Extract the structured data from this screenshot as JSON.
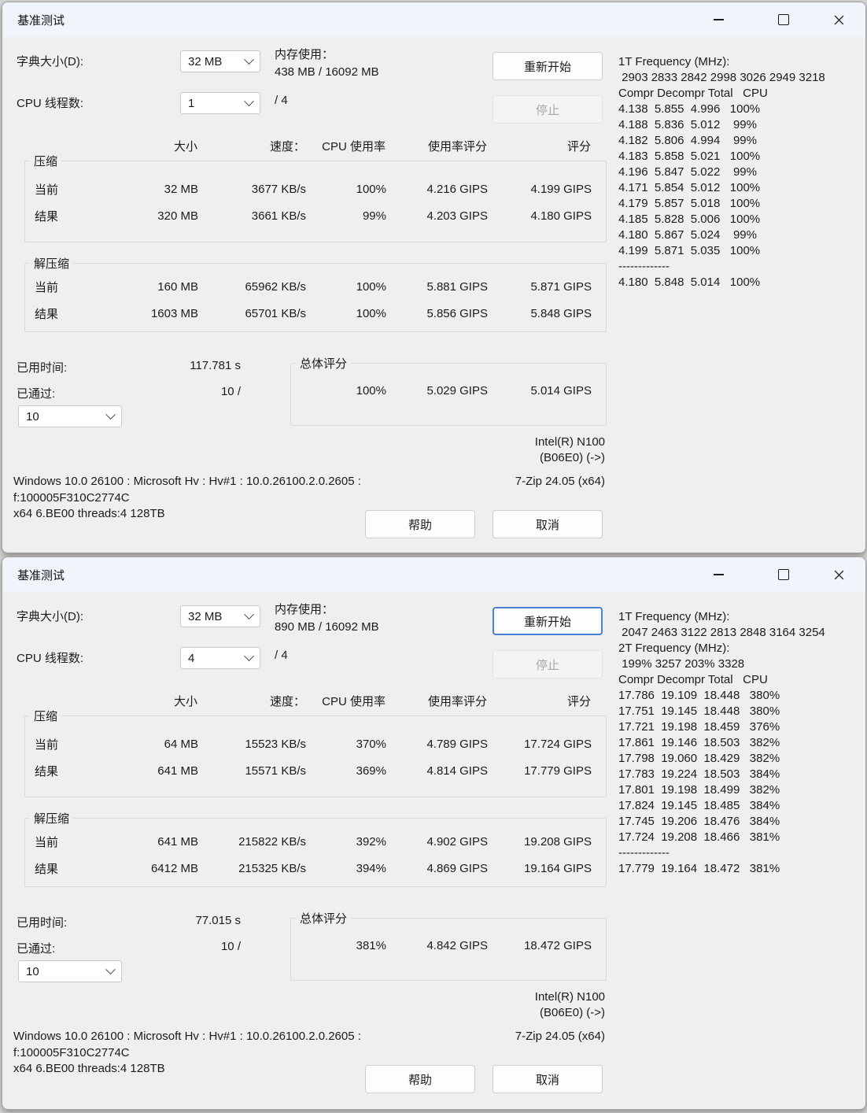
{
  "table_headers": {
    "size": "大小",
    "speed": "速度：",
    "cpu": "CPU 使用率",
    "usage": "使用率评分",
    "score": "评分"
  },
  "colors": {
    "focus_accent": "#4a80d2",
    "titlebar": "#f0f4fb",
    "window_bg": "#efefef"
  },
  "window_controls": {
    "minimize": "minimize",
    "maximize": "maximize",
    "close": "close"
  },
  "windows": [
    {
      "title": "基准测试",
      "dict_label": "字典大小(D):",
      "dict_value": "32 MB",
      "mem_label": "内存使用：",
      "mem_value": "438 MB / 16092 MB",
      "threads_label": "CPU 线程数:",
      "threads_value": "1",
      "threads_total": "/ 4",
      "restart_button": "重新开始",
      "stop_button": "停止",
      "compression": {
        "title": "压缩",
        "rows": [
          {
            "label": "当前",
            "size": "32 MB",
            "speed": "3677 KB/s",
            "cpu": "100%",
            "usage": "4.216 GIPS",
            "score": "4.199 GIPS"
          },
          {
            "label": "结果",
            "size": "320 MB",
            "speed": "3661 KB/s",
            "cpu": "99%",
            "usage": "4.203 GIPS",
            "score": "4.180 GIPS"
          }
        ]
      },
      "decompression": {
        "title": "解压缩",
        "rows": [
          {
            "label": "当前",
            "size": "160 MB",
            "speed": "65962 KB/s",
            "cpu": "100%",
            "usage": "5.881 GIPS",
            "score": "5.871 GIPS"
          },
          {
            "label": "结果",
            "size": "1603 MB",
            "speed": "65701 KB/s",
            "cpu": "100%",
            "usage": "5.856 GIPS",
            "score": "5.848 GIPS"
          }
        ]
      },
      "elapsed_label": "已用时间:",
      "elapsed_value": "117.781 s",
      "passes_label": "已通过:",
      "passes_value": "10 /",
      "passes_select": "10",
      "overall": {
        "title": "总体评分",
        "cpu": "100%",
        "usage": "5.029 GIPS",
        "score": "5.014 GIPS"
      },
      "cpu_name_line1": "Intel(R) N100",
      "cpu_name_line2": "(B06E0) (->)",
      "sys_line1": "Windows 10.0 26100 : Microsoft Hv : Hv#1 : 10.0.26100.2.0.2605 :",
      "sys_line2": "f:100005F310C2774C",
      "sys_line3": "x64 6.BE00 threads:4 128TB",
      "app_version": "7-Zip 24.05 (x64)",
      "help_button": "帮助",
      "cancel_button": "取消",
      "log": [
        "1T Frequency (MHz):",
        " 2903 2833 2842 2998 3026 2949 3218",
        "Compr Decompr Total   CPU",
        "4.138  5.855  4.996   100%",
        "4.188  5.836  5.012    99%",
        "4.182  5.806  4.994    99%",
        "4.183  5.858  5.021   100%",
        "4.196  5.847  5.022    99%",
        "4.171  5.854  5.012   100%",
        "4.179  5.857  5.018   100%",
        "4.185  5.828  5.006   100%",
        "4.180  5.867  5.024    99%",
        "4.199  5.871  5.035   100%",
        "-------------",
        "4.180  5.848  5.014   100%"
      ]
    },
    {
      "title": "基准测试",
      "dict_label": "字典大小(D):",
      "dict_value": "32 MB",
      "mem_label": "内存使用：",
      "mem_value": "890 MB / 16092 MB",
      "threads_label": "CPU 线程数:",
      "threads_value": "4",
      "threads_total": "/ 4",
      "restart_button": "重新开始",
      "stop_button": "停止",
      "compression": {
        "title": "压缩",
        "rows": [
          {
            "label": "当前",
            "size": "64 MB",
            "speed": "15523 KB/s",
            "cpu": "370%",
            "usage": "4.789 GIPS",
            "score": "17.724 GIPS"
          },
          {
            "label": "结果",
            "size": "641 MB",
            "speed": "15571 KB/s",
            "cpu": "369%",
            "usage": "4.814 GIPS",
            "score": "17.779 GIPS"
          }
        ]
      },
      "decompression": {
        "title": "解压缩",
        "rows": [
          {
            "label": "当前",
            "size": "641 MB",
            "speed": "215822 KB/s",
            "cpu": "392%",
            "usage": "4.902 GIPS",
            "score": "19.208 GIPS"
          },
          {
            "label": "结果",
            "size": "6412 MB",
            "speed": "215325 KB/s",
            "cpu": "394%",
            "usage": "4.869 GIPS",
            "score": "19.164 GIPS"
          }
        ]
      },
      "elapsed_label": "已用时间:",
      "elapsed_value": "77.015 s",
      "passes_label": "已通过:",
      "passes_value": "10 /",
      "passes_select": "10",
      "overall": {
        "title": "总体评分",
        "cpu": "381%",
        "usage": "4.842 GIPS",
        "score": "18.472 GIPS"
      },
      "cpu_name_line1": "Intel(R) N100",
      "cpu_name_line2": "(B06E0) (->)",
      "sys_line1": "Windows 10.0 26100 : Microsoft Hv : Hv#1 : 10.0.26100.2.0.2605 :",
      "sys_line2": "f:100005F310C2774C",
      "sys_line3": "x64 6.BE00 threads:4 128TB",
      "app_version": "7-Zip 24.05 (x64)",
      "help_button": "帮助",
      "cancel_button": "取消",
      "log": [
        "1T Frequency (MHz):",
        " 2047 2463 3122 2813 2848 3164 3254",
        "2T Frequency (MHz):",
        " 199% 3257 203% 3328",
        "Compr Decompr Total   CPU",
        "17.786  19.109  18.448   380%",
        "17.751  19.145  18.448   380%",
        "17.721  19.198  18.459   376%",
        "17.861  19.146  18.503   382%",
        "17.798  19.060  18.429   382%",
        "17.783  19.224  18.503   384%",
        "17.801  19.198  18.499   382%",
        "17.824  19.145  18.485   384%",
        "17.745  19.206  18.476   384%",
        "17.724  19.208  18.466   381%",
        "-------------",
        "17.779  19.164  18.472   381%"
      ]
    }
  ]
}
